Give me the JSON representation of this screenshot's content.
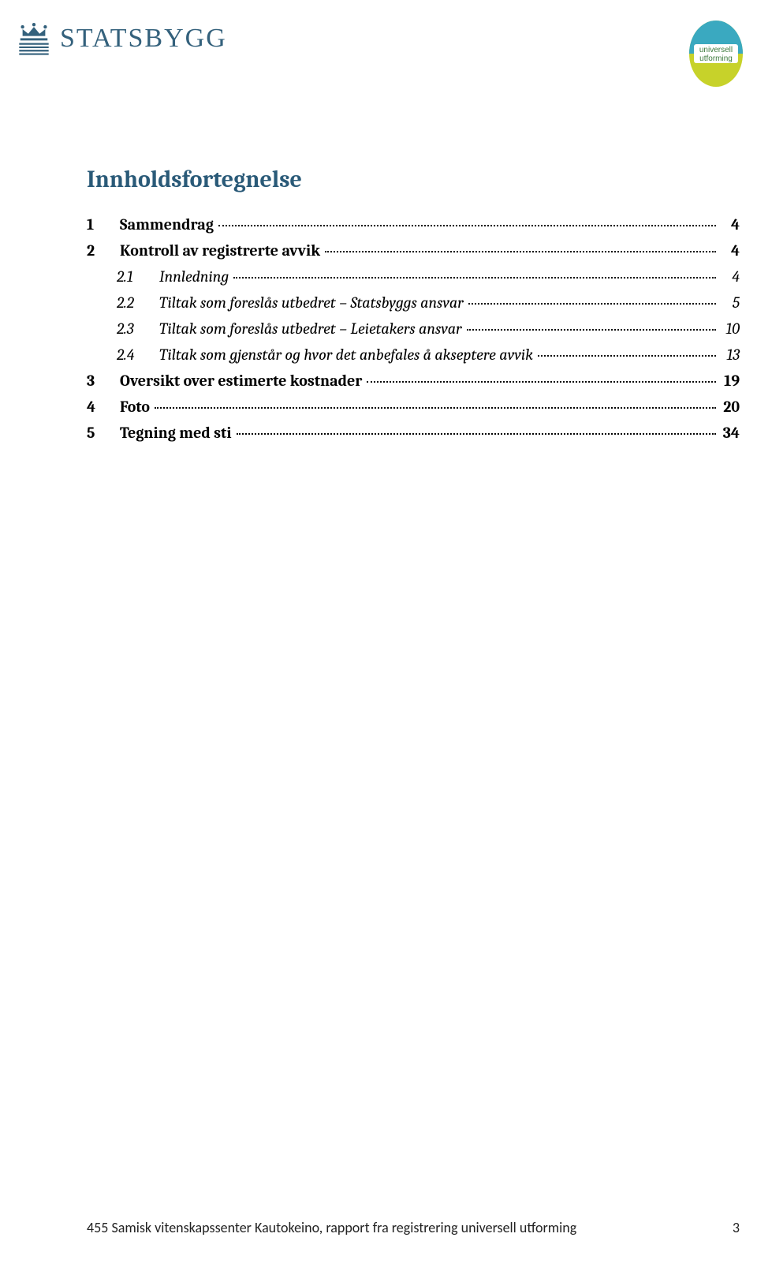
{
  "header": {
    "brand_text": "STATSBYGG",
    "brand_color": "#34617c",
    "badge_line1": "universell",
    "badge_line2": "utforming",
    "badge_top_color": "#3aa9c0",
    "badge_bottom_color": "#c7d22a",
    "badge_text_color": "#3c7a3c"
  },
  "toc": {
    "title": "Innholdsfortegnelse",
    "title_color": "#2a5a78",
    "entries": [
      {
        "level": 1,
        "num": "1",
        "label": "Sammendrag",
        "page": "4"
      },
      {
        "level": 1,
        "num": "2",
        "label": "Kontroll av registrerte avvik",
        "page": "4"
      },
      {
        "level": 2,
        "num": "2.1",
        "label": "Innledning",
        "page": "4"
      },
      {
        "level": 2,
        "num": "2.2",
        "label": "Tiltak som foreslås utbedret – Statsbyggs ansvar",
        "page": "5"
      },
      {
        "level": 2,
        "num": "2.3",
        "label": "Tiltak som foreslås utbedret – Leietakers ansvar",
        "page": "10"
      },
      {
        "level": 2,
        "num": "2.4",
        "label": "Tiltak som gjenstår og hvor det anbefales å akseptere avvik",
        "page": "13"
      },
      {
        "level": 1,
        "num": "3",
        "label": "Oversikt over estimerte kostnader",
        "page": "19"
      },
      {
        "level": 1,
        "num": "4",
        "label": "Foto",
        "page": "20"
      },
      {
        "level": 1,
        "num": "5",
        "label": "Tegning med sti",
        "page": "34"
      }
    ]
  },
  "footer": {
    "text": "455 Samisk vitenskapssenter Kautokeino, rapport fra registrering universell utforming",
    "page_number": "3"
  }
}
